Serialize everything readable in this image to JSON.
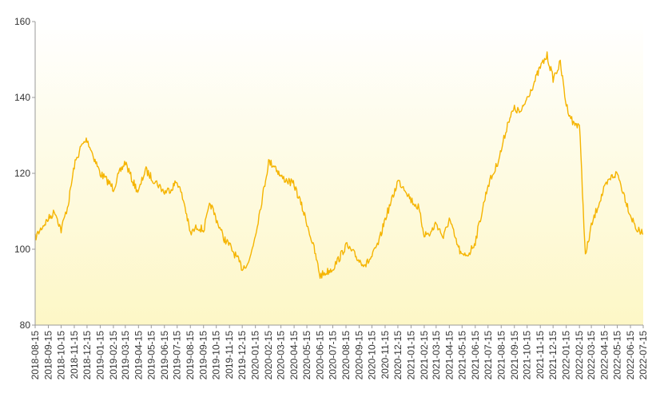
{
  "chart_data": {
    "type": "line",
    "title": "",
    "xlabel": "",
    "ylabel": "",
    "ylim": [
      80,
      160
    ],
    "yticks": [
      80,
      100,
      120,
      140,
      160
    ],
    "grid": false,
    "legend": "none",
    "colors": {
      "line": "#f5b400",
      "area_top": "#ffffff",
      "area_bottom": "#fdf7c6"
    },
    "x_ticks": [
      "2018-08-15",
      "2018-09-15",
      "2018-10-15",
      "2018-11-15",
      "2018-12-15",
      "2019-01-15",
      "2019-02-15",
      "2019-03-15",
      "2019-04-15",
      "2019-05-15",
      "2019-06-15",
      "2019-07-15",
      "2019-08-15",
      "2019-09-15",
      "2019-10-15",
      "2019-11-15",
      "2019-12-15",
      "2020-01-15",
      "2020-02-15",
      "2020-03-15",
      "2020-04-15",
      "2020-05-15",
      "2020-06-15",
      "2020-07-15",
      "2020-08-15",
      "2020-09-15",
      "2020-10-15",
      "2020-11-15",
      "2020-12-15",
      "2021-01-15",
      "2021-02-15",
      "2021-03-15",
      "2021-04-15",
      "2021-05-15",
      "2021-06-15",
      "2021-07-15",
      "2021-08-15",
      "2021-09-15",
      "2021-10-15",
      "2021-11-15",
      "2021-12-15",
      "2022-01-15",
      "2022-02-15",
      "2022-03-15",
      "2022-04-15",
      "2022-05-15",
      "2022-06-15",
      "2022-07-15"
    ],
    "series": [
      {
        "x": [
          "2018-08-15",
          "2018-09-01",
          "2018-09-15",
          "2018-10-01",
          "2018-10-15",
          "2018-11-01",
          "2018-11-15",
          "2018-12-01",
          "2018-12-15",
          "2019-01-01",
          "2019-01-15",
          "2019-02-01",
          "2019-02-15",
          "2019-03-01",
          "2019-03-15",
          "2019-04-01",
          "2019-04-15",
          "2019-05-01",
          "2019-05-15",
          "2019-06-01",
          "2019-06-15",
          "2019-07-01",
          "2019-07-15",
          "2019-08-01",
          "2019-08-15",
          "2019-09-01",
          "2019-09-15",
          "2019-10-01",
          "2019-10-15",
          "2019-11-01",
          "2019-11-15",
          "2019-12-01",
          "2019-12-15",
          "2020-01-01",
          "2020-01-15",
          "2020-02-01",
          "2020-02-15",
          "2020-03-01",
          "2020-03-15",
          "2020-04-01",
          "2020-04-15",
          "2020-05-01",
          "2020-05-15",
          "2020-06-01",
          "2020-06-15",
          "2020-07-01",
          "2020-07-15",
          "2020-08-01",
          "2020-08-15",
          "2020-09-01",
          "2020-09-15",
          "2020-10-01",
          "2020-10-15",
          "2020-11-01",
          "2020-11-15",
          "2020-12-01",
          "2020-12-15",
          "2021-01-01",
          "2021-01-15",
          "2021-02-01",
          "2021-02-15",
          "2021-03-01",
          "2021-03-15",
          "2021-04-01",
          "2021-04-15",
          "2021-05-01",
          "2021-05-15",
          "2021-06-01",
          "2021-06-15",
          "2021-07-01",
          "2021-07-15",
          "2021-08-01",
          "2021-08-15",
          "2021-09-01",
          "2021-09-15",
          "2021-10-01",
          "2021-10-15",
          "2021-11-01",
          "2021-11-15",
          "2021-12-01",
          "2021-12-15",
          "2022-01-01",
          "2022-01-15",
          "2022-02-01",
          "2022-02-15",
          "2022-03-01",
          "2022-03-15",
          "2022-04-01",
          "2022-04-15",
          "2022-05-01",
          "2022-05-15",
          "2022-06-01",
          "2022-06-15",
          "2022-07-01",
          "2022-07-15"
        ],
        "values": [
          103,
          106,
          108,
          110,
          105,
          112,
          122,
          127,
          129,
          124,
          120,
          118,
          116,
          120,
          123,
          118,
          115,
          121,
          119,
          117,
          115,
          116,
          118,
          112,
          104,
          106,
          105,
          112,
          108,
          103,
          101,
          98,
          95,
          97,
          104,
          114,
          123,
          122,
          119,
          118,
          117,
          112,
          107,
          100,
          93,
          94,
          95,
          98,
          101,
          99,
          97,
          96,
          98,
          102,
          108,
          113,
          118,
          116,
          113,
          111,
          104,
          104,
          107,
          103,
          108,
          102,
          98,
          99,
          102,
          110,
          117,
          121,
          126,
          134,
          137,
          136,
          140,
          144,
          148,
          151,
          145,
          149,
          138,
          133,
          133,
          98,
          106,
          112,
          116,
          119,
          120,
          114,
          109,
          105,
          104
        ]
      }
    ]
  }
}
